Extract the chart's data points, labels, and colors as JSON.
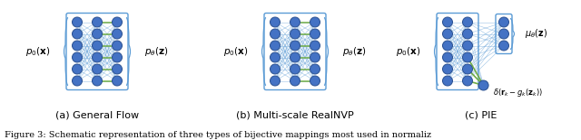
{
  "subfig_labels": [
    "(a) General Flow",
    "(b) Multi-scale RealNVP",
    "(c) PIE"
  ],
  "caption": "Figure 3: Schematic representation of three types of bijective mappings most used in normaliz",
  "bg_color": "#ffffff",
  "node_color": "#4472c4",
  "node_edge_color": "#2a5090",
  "blue": "#5b9bd5",
  "green": "#70ad47",
  "box_color": "#5b9bd5",
  "label_fontsize": 8.0,
  "caption_fontsize": 7.0,
  "math_fontsize": 7.5
}
